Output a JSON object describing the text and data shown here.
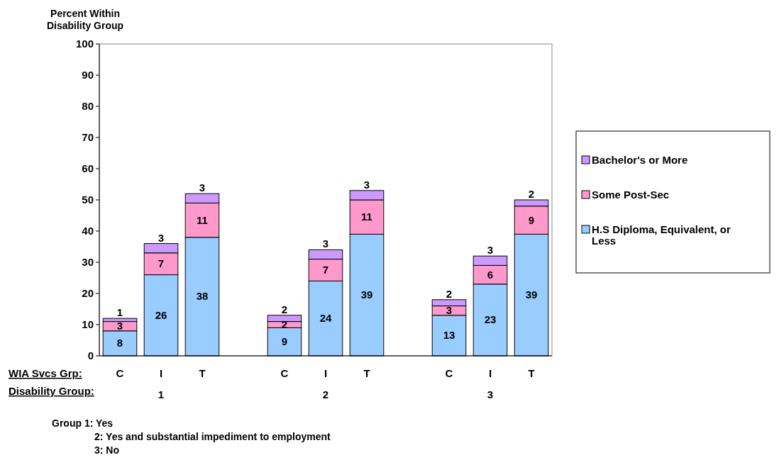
{
  "chart_data": {
    "type": "bar",
    "stacked": true,
    "ylabel": "Percent Within Disability Group",
    "categories": [
      "C",
      "I",
      "T",
      null,
      "C",
      "I",
      "T",
      null,
      "C",
      "I",
      "T"
    ],
    "series": [
      {
        "name": "H.S Diploma, Equivalent, or Less",
        "color": "#99ccff",
        "values": [
          8,
          26,
          38,
          null,
          9,
          24,
          39,
          null,
          13,
          23,
          39
        ]
      },
      {
        "name": "Some Post-Sec",
        "color": "#ff99cc",
        "values": [
          3,
          7,
          11,
          null,
          2,
          7,
          11,
          null,
          3,
          6,
          9
        ]
      },
      {
        "name": "Bachelor's or More",
        "color": "#cc99ff",
        "values": [
          1,
          3,
          3,
          null,
          2,
          3,
          3,
          null,
          2,
          3,
          2
        ]
      }
    ],
    "ylim": [
      0,
      100
    ],
    "yticks": [
      0,
      10,
      20,
      30,
      40,
      50,
      60,
      70,
      80,
      90,
      100
    ],
    "grid": false,
    "legend": "right",
    "data_labels": true,
    "annotations": [
      "WIA Svcs Grp:",
      "Disability Group:",
      "1",
      "2",
      "3",
      "Group 1:  Yes",
      "2:  Yes and substantial impediment to employment",
      "3:  No"
    ]
  }
}
